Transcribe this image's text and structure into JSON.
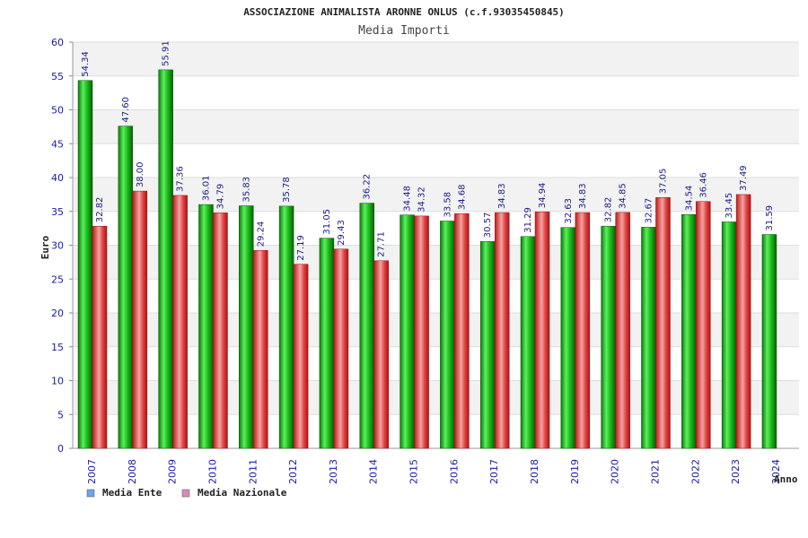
{
  "chart_data": {
    "type": "bar",
    "title": "ASSOCIAZIONE ANIMALISTA ARONNE ONLUS (c.f.93035450845)",
    "subtitle": "Media Importi",
    "xlabel": "Anno",
    "ylabel": "Euro",
    "ylim": [
      0,
      60
    ],
    "yticks": [
      0,
      5,
      10,
      15,
      20,
      25,
      30,
      35,
      40,
      45,
      50,
      55,
      60
    ],
    "categories": [
      "2007",
      "2008",
      "2009",
      "2010",
      "2011",
      "2012",
      "2013",
      "2014",
      "2015",
      "2016",
      "2017",
      "2018",
      "2019",
      "2020",
      "2021",
      "2022",
      "2023",
      "2024"
    ],
    "series": [
      {
        "name": "Media Ente",
        "legend_color": "#6aa6e8",
        "values": [
          54.34,
          47.6,
          55.91,
          36.01,
          35.83,
          35.78,
          31.05,
          36.22,
          34.48,
          33.58,
          30.57,
          31.29,
          32.63,
          32.82,
          32.67,
          34.54,
          33.45,
          31.59
        ],
        "labels": [
          "54.34",
          "47.60",
          "55.91",
          "36.01",
          "35.83",
          "35.78",
          "31.05",
          "36.22",
          "34.48",
          "33.58",
          "30.57",
          "31.29",
          "32.63",
          "32.82",
          "32.67",
          "34.54",
          "33.45",
          "31.59"
        ]
      },
      {
        "name": "Media Nazionale",
        "legend_color": "#d98ab8",
        "values": [
          32.82,
          38.0,
          37.36,
          34.79,
          29.24,
          27.19,
          29.43,
          27.71,
          34.32,
          34.68,
          34.83,
          34.94,
          34.83,
          34.85,
          37.05,
          36.46,
          37.49,
          null
        ],
        "labels": [
          "32.82",
          "38.00",
          "37.36",
          "34.79",
          "29.24",
          "27.19",
          "29.43",
          "27.71",
          "34.32",
          "34.68",
          "34.83",
          "34.94",
          "34.83",
          "34.85",
          "37.05",
          "36.46",
          "37.49",
          ""
        ]
      }
    ],
    "grid": true,
    "legend_position": "bottom-left"
  }
}
